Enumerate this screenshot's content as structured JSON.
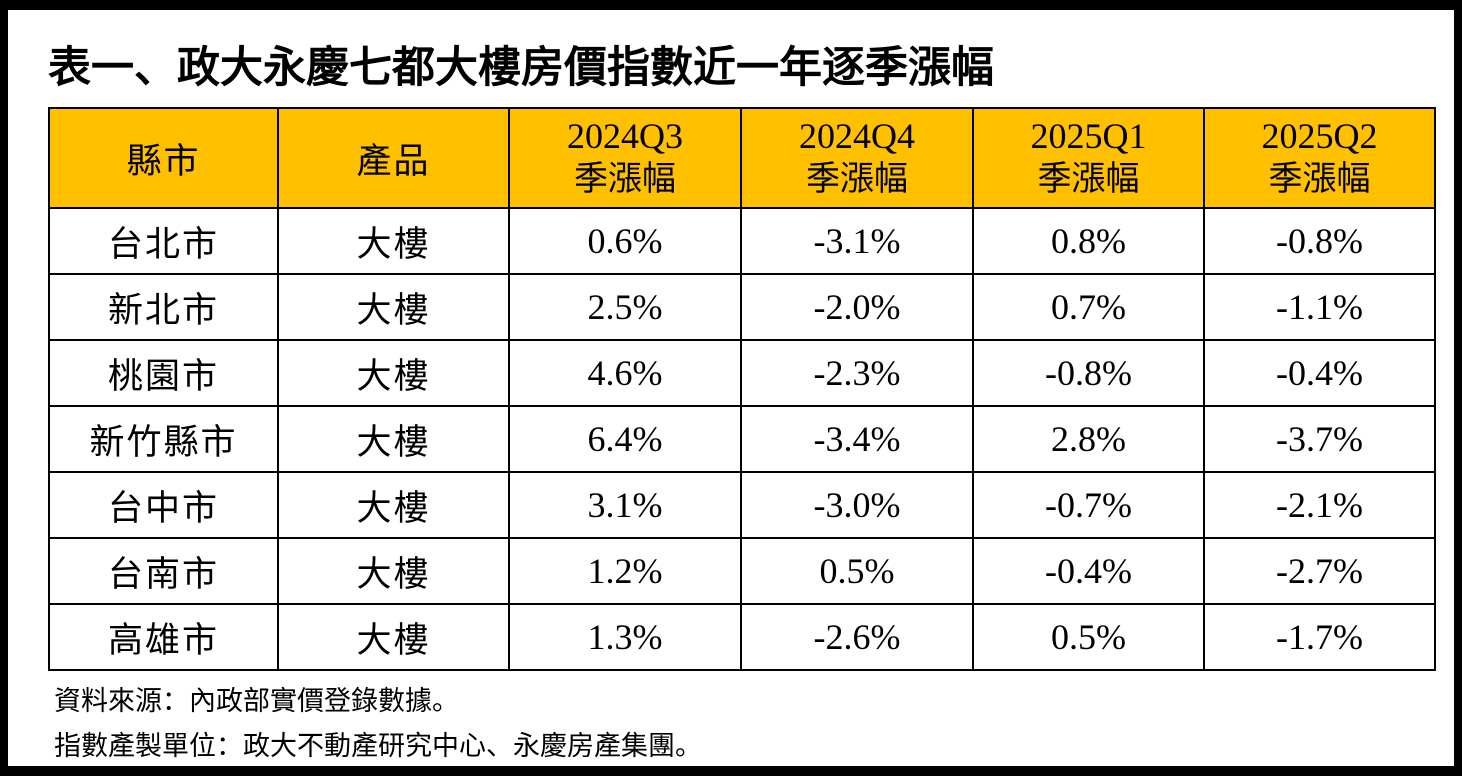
{
  "title": "表一、政大永慶七都大樓房價指數近一年逐季漲幅",
  "table": {
    "headers": {
      "city": "縣市",
      "product": "產品",
      "quarters": [
        {
          "period": "2024Q3",
          "label": "季漲幅"
        },
        {
          "period": "2024Q4",
          "label": "季漲幅"
        },
        {
          "period": "2025Q1",
          "label": "季漲幅"
        },
        {
          "period": "2025Q2",
          "label": "季漲幅"
        }
      ]
    },
    "rows": [
      {
        "city": "台北市",
        "product": "大樓",
        "values": [
          "0.6%",
          "-3.1%",
          "0.8%",
          "-0.8%"
        ]
      },
      {
        "city": "新北市",
        "product": "大樓",
        "values": [
          "2.5%",
          "-2.0%",
          "0.7%",
          "-1.1%"
        ]
      },
      {
        "city": "桃園市",
        "product": "大樓",
        "values": [
          "4.6%",
          "-2.3%",
          "-0.8%",
          "-0.4%"
        ]
      },
      {
        "city": "新竹縣市",
        "product": "大樓",
        "values": [
          "6.4%",
          "-3.4%",
          "2.8%",
          "-3.7%"
        ]
      },
      {
        "city": "台中市",
        "product": "大樓",
        "values": [
          "3.1%",
          "-3.0%",
          "-0.7%",
          "-2.1%"
        ]
      },
      {
        "city": "台南市",
        "product": "大樓",
        "values": [
          "1.2%",
          "0.5%",
          "-0.4%",
          "-2.7%"
        ]
      },
      {
        "city": "高雄市",
        "product": "大樓",
        "values": [
          "1.3%",
          "-2.6%",
          "0.5%",
          "-1.7%"
        ]
      }
    ]
  },
  "notes": {
    "source": "資料來源：內政部實價登錄數據。",
    "producer": "指數產製單位：政大不動產研究中心、永慶房產集團。"
  },
  "colors": {
    "header_background": "#ffc000",
    "border": "#000000",
    "frame": "#000000"
  }
}
